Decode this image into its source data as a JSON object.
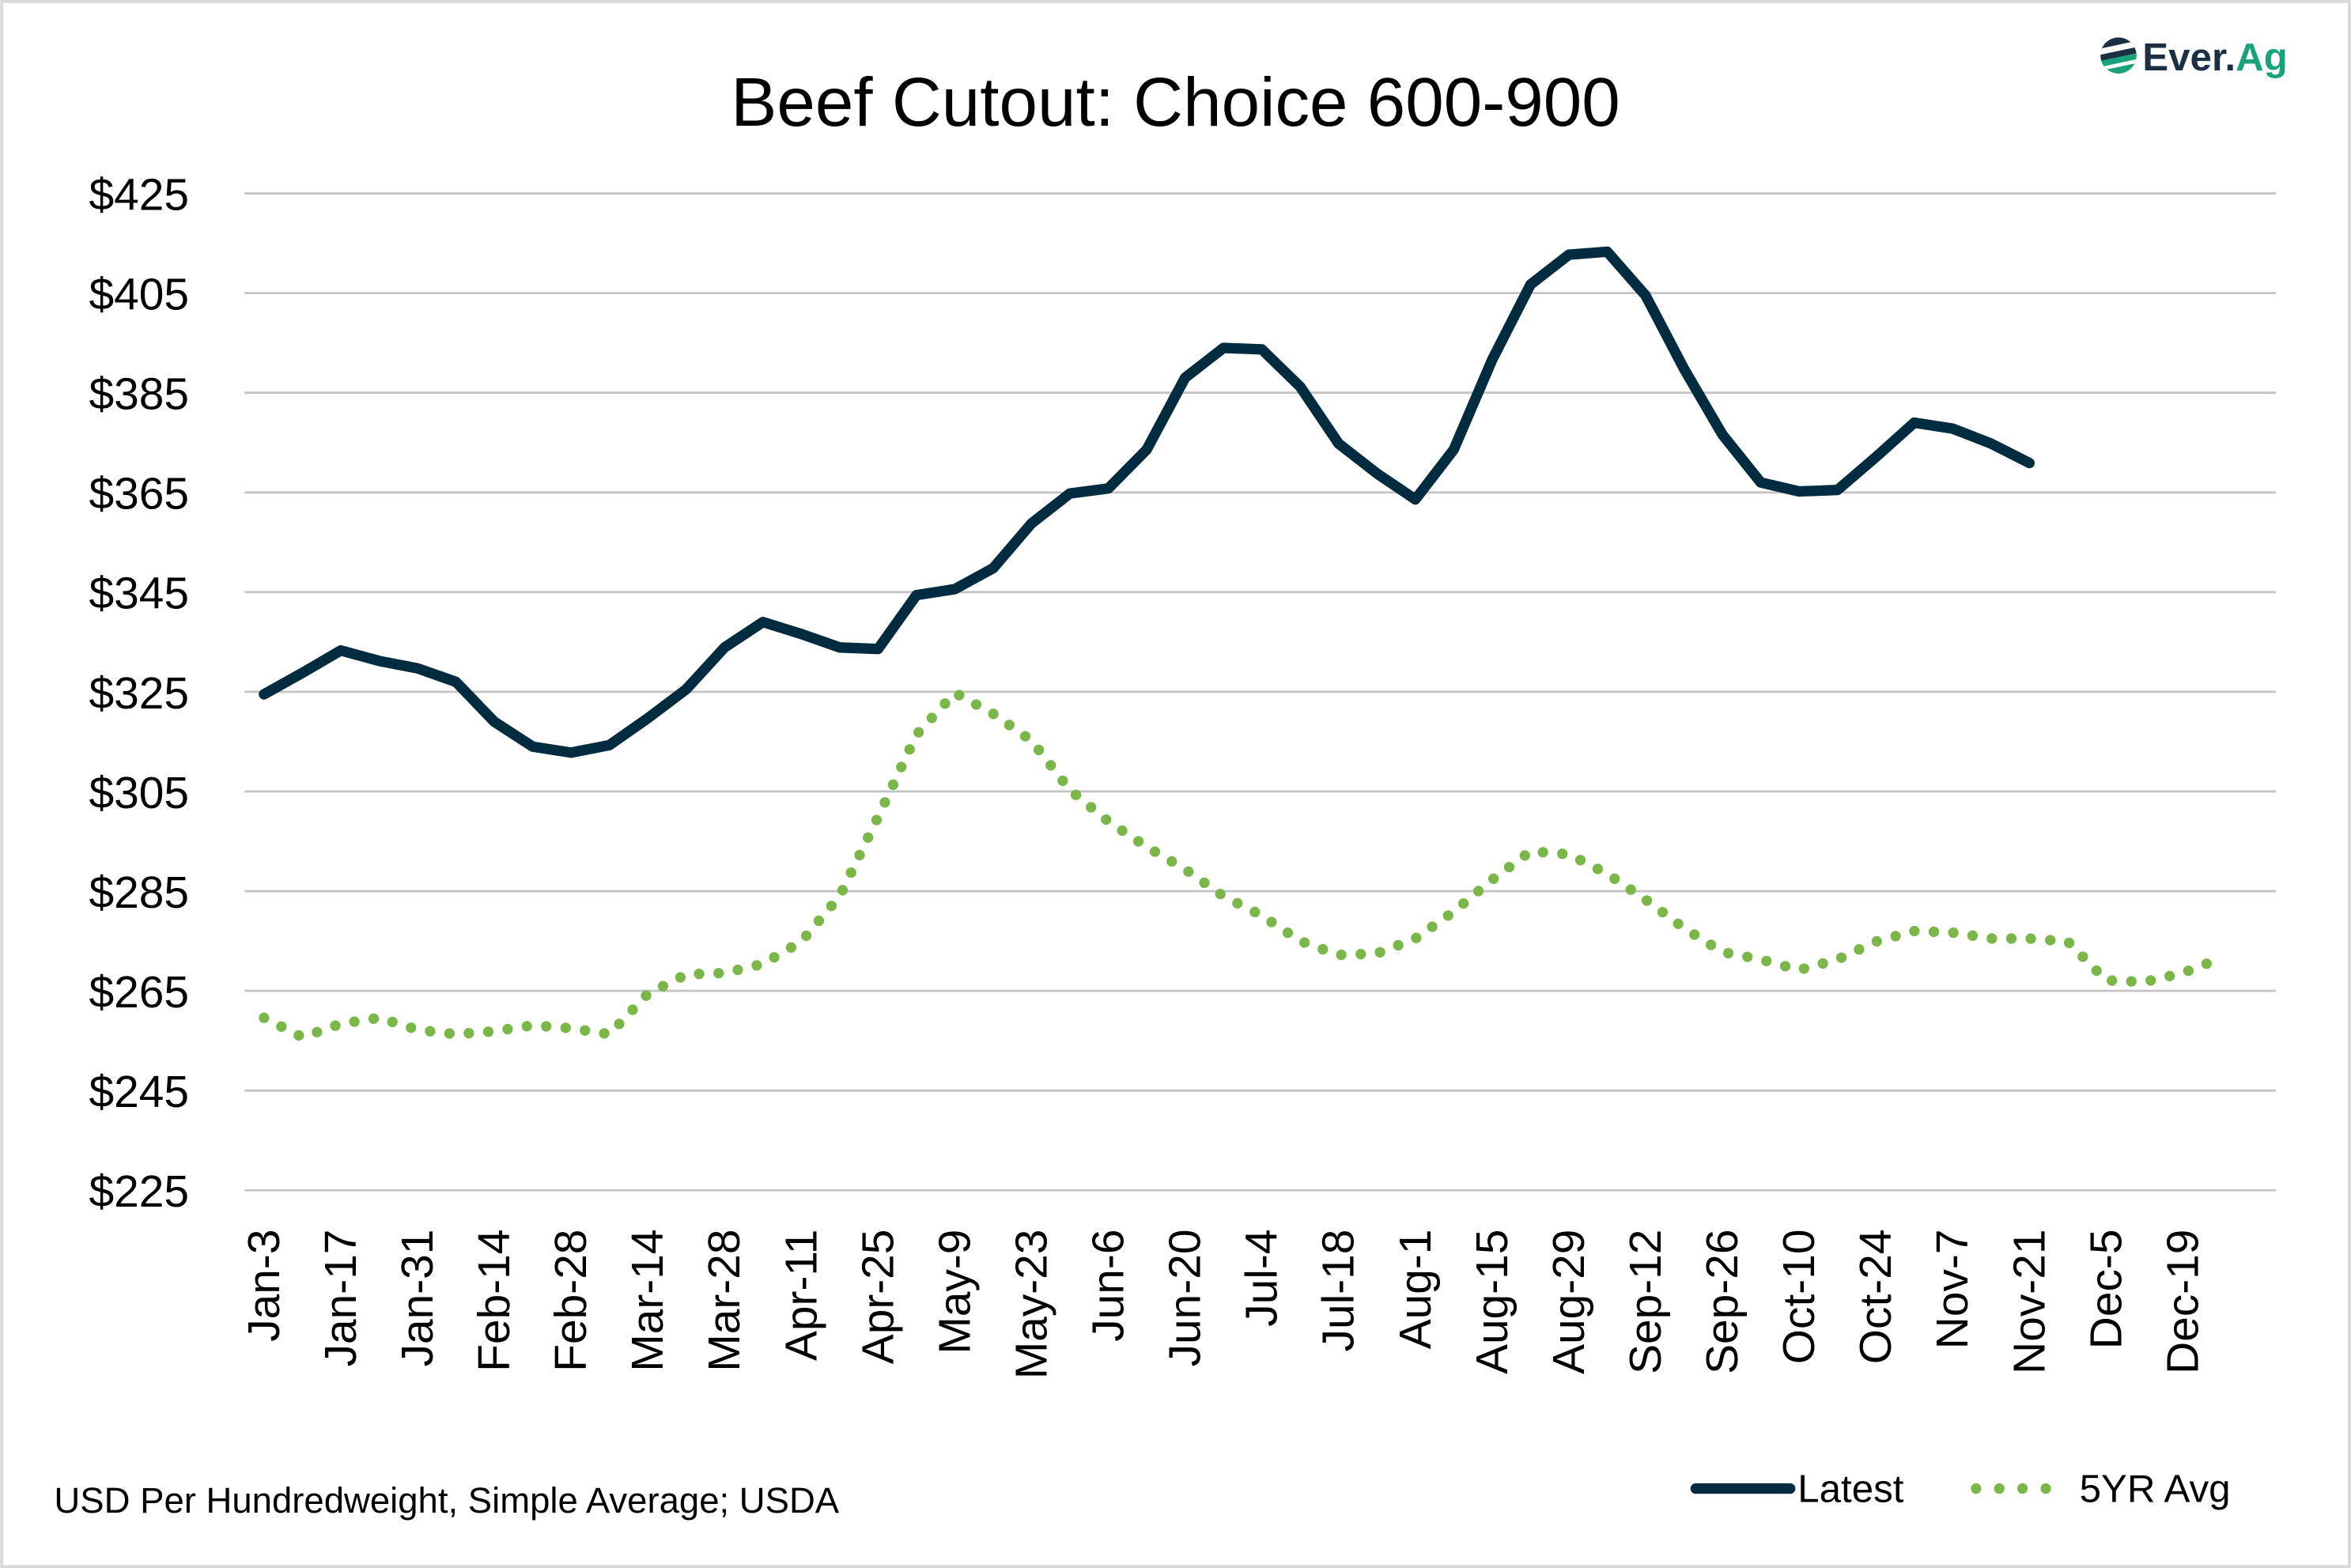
{
  "logo": {
    "text_dark": "Ever.",
    "text_green": "Ag"
  },
  "colors": {
    "latest": "#012b3f",
    "avg": "#7ab648",
    "grid": "#c4c4c4",
    "logo_dark": "#1b2f45",
    "logo_green": "#1aa37a"
  },
  "footer": {
    "source": "USD Per Hundredweight, Simple Average; USDA"
  },
  "chart_data": {
    "type": "line",
    "title": "Beef Cutout: Choice 600-900",
    "xlabel": "",
    "ylabel": "",
    "ylim": [
      225,
      425
    ],
    "yticks": [
      225,
      245,
      265,
      285,
      305,
      325,
      345,
      365,
      385,
      405,
      425
    ],
    "ytick_labels": [
      "$225",
      "$245",
      "$265",
      "$285",
      "$305",
      "$325",
      "$345",
      "$365",
      "$385",
      "$405",
      "$425"
    ],
    "x_tick_labels": [
      "Jan-3",
      "Jan-17",
      "Jan-31",
      "Feb-14",
      "Feb-28",
      "Mar-14",
      "Mar-28",
      "Apr-11",
      "Apr-25",
      "May-9",
      "May-23",
      "Jun-6",
      "Jun-20",
      "Jul-4",
      "Jul-18",
      "Aug-1",
      "Aug-15",
      "Aug-29",
      "Sep-12",
      "Sep-26",
      "Oct-10",
      "Oct-24",
      "Nov-7",
      "Nov-21",
      "Dec-5",
      "Dec-19"
    ],
    "x_unit": "week index (0 = Jan-3, weekly)",
    "grid": true,
    "legend": {
      "placement": "bottom-right",
      "entries": [
        "Latest",
        "5YR Avg"
      ]
    },
    "series": [
      {
        "name": "Latest",
        "style": "solid",
        "values": [
          324.5,
          328.8,
          333.3,
          331.2,
          329.7,
          327,
          319,
          314,
          312.8,
          314.3,
          319.7,
          325.5,
          333.9,
          339,
          336.6,
          333.9,
          333.6,
          344.4,
          345.6,
          349.8,
          358.8,
          364.8,
          365.8,
          373.6,
          388,
          394,
          393.7,
          386.2,
          374.8,
          368.8,
          363.6,
          373.6,
          391.6,
          406.7,
          412.7,
          413.3,
          404.5,
          389.8,
          376.6,
          367,
          365.2,
          365.5,
          372.1,
          379,
          377.8,
          374.8,
          370.9
        ]
      },
      {
        "name": "5YR Avg",
        "style": "dotted",
        "values": [
          259.6,
          255.7,
          258.4,
          259.6,
          257.2,
          256.3,
          256.9,
          258.1,
          257.5,
          256.3,
          264.4,
          268.3,
          268.6,
          270.4,
          274.9,
          284,
          299.9,
          316.4,
          324.8,
          320.6,
          315.2,
          305.3,
          299,
          293.9,
          289.4,
          284,
          280.1,
          275,
          272.2,
          272.5,
          275.5,
          280.9,
          287.3,
          293,
          292.4,
          288.5,
          283.3,
          277.6,
          272.8,
          271.3,
          269.2,
          271.3,
          274.9,
          277,
          276.7,
          275.5,
          275.5,
          274.9,
          267.1,
          266.8,
          268.6,
          271.6
        ]
      }
    ]
  }
}
